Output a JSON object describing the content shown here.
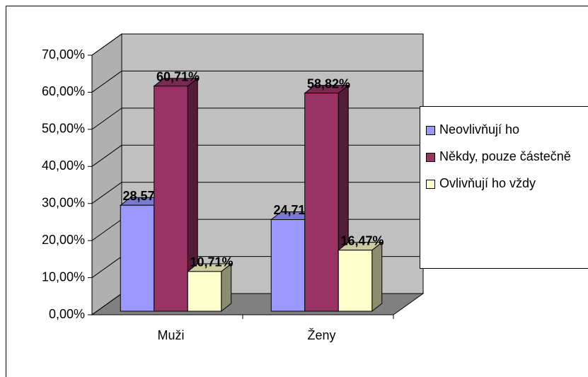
{
  "chart_data": {
    "type": "bar3d",
    "categories": [
      "Muži",
      "Ženy"
    ],
    "series": [
      {
        "name": "Neovlivňují ho",
        "color": "#9999ff",
        "values": [
          28.57,
          24.71
        ],
        "value_labels": [
          "28,57%",
          "24,71%"
        ]
      },
      {
        "name": "Někdy, pouze částečně",
        "color": "#993366",
        "values": [
          60.71,
          58.82
        ],
        "value_labels": [
          "60,71%",
          "58,82%"
        ]
      },
      {
        "name": "Ovlivňují ho vždy",
        "color": "#ffffcc",
        "values": [
          10.71,
          16.47
        ],
        "value_labels": [
          "10,71%",
          "16,47%"
        ]
      }
    ],
    "ylim": [
      0,
      70
    ],
    "yticks": [
      {
        "value": 0,
        "label": "0,00%"
      },
      {
        "value": 10,
        "label": "10,00%"
      },
      {
        "value": 20,
        "label": "20,00%"
      },
      {
        "value": 30,
        "label": "30,00%"
      },
      {
        "value": 40,
        "label": "40,00%"
      },
      {
        "value": 50,
        "label": "50,00%"
      },
      {
        "value": 60,
        "label": "60,00%"
      },
      {
        "value": 70,
        "label": "70,00%"
      }
    ],
    "grid": true,
    "legend": "right"
  }
}
